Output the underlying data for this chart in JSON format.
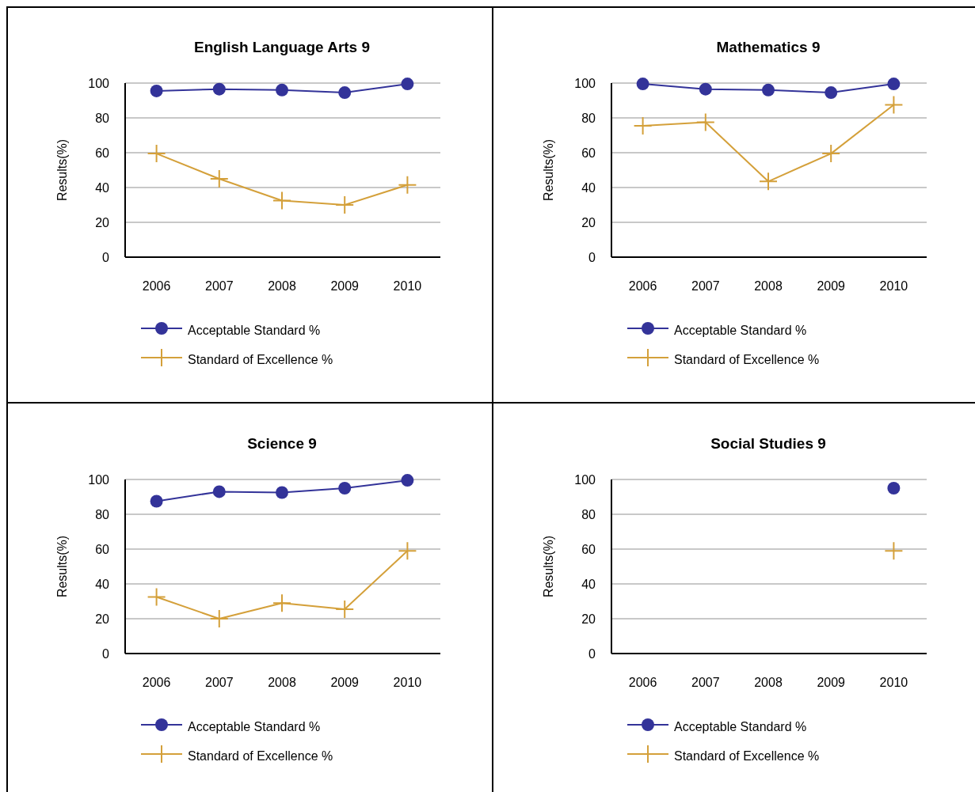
{
  "chart_data": [
    {
      "type": "line",
      "title": "English Language Arts 9",
      "ylabel": "Results(%)",
      "categories": [
        "2006",
        "2007",
        "2008",
        "2009",
        "2010"
      ],
      "ylim": [
        0,
        100
      ],
      "yticks": [
        0,
        20,
        40,
        60,
        80,
        100
      ],
      "grid": "y",
      "legend": "bottom",
      "series": [
        {
          "name": "Acceptable Standard %",
          "color": "#333399",
          "marker": "circle",
          "values": [
            95.5,
            96.5,
            96,
            94.5,
            99.5
          ]
        },
        {
          "name": "Standard of Excellence %",
          "color": "#d4a03a",
          "marker": "cross",
          "values": [
            59.5,
            45,
            32.5,
            30,
            41.5
          ]
        }
      ]
    },
    {
      "type": "line",
      "title": "Mathematics 9",
      "ylabel": "Results(%)",
      "categories": [
        "2006",
        "2007",
        "2008",
        "2009",
        "2010"
      ],
      "ylim": [
        0,
        100
      ],
      "yticks": [
        0,
        20,
        40,
        60,
        80,
        100
      ],
      "grid": "y",
      "legend": "bottom",
      "series": [
        {
          "name": "Acceptable Standard %",
          "color": "#333399",
          "marker": "circle",
          "values": [
            99.5,
            96.5,
            96,
            94.5,
            99.5
          ]
        },
        {
          "name": "Standard of Excellence %",
          "color": "#d4a03a",
          "marker": "cross",
          "values": [
            75.5,
            77.5,
            43.5,
            59.5,
            87.5
          ]
        }
      ]
    },
    {
      "type": "line",
      "title": "Science 9",
      "ylabel": "Results(%)",
      "categories": [
        "2006",
        "2007",
        "2008",
        "2009",
        "2010"
      ],
      "ylim": [
        0,
        100
      ],
      "yticks": [
        0,
        20,
        40,
        60,
        80,
        100
      ],
      "grid": "y",
      "legend": "bottom",
      "series": [
        {
          "name": "Acceptable Standard %",
          "color": "#333399",
          "marker": "circle",
          "values": [
            87.5,
            93,
            92.5,
            95,
            99.5
          ]
        },
        {
          "name": "Standard of Excellence %",
          "color": "#d4a03a",
          "marker": "cross",
          "values": [
            32.5,
            20,
            29,
            25.5,
            59
          ]
        }
      ]
    },
    {
      "type": "line",
      "title": "Social Studies 9",
      "ylabel": "Results(%)",
      "categories": [
        "2006",
        "2007",
        "2008",
        "2009",
        "2010"
      ],
      "ylim": [
        0,
        100
      ],
      "yticks": [
        0,
        20,
        40,
        60,
        80,
        100
      ],
      "grid": "y",
      "legend": "bottom",
      "series": [
        {
          "name": "Acceptable Standard %",
          "color": "#333399",
          "marker": "circle",
          "values": [
            null,
            null,
            null,
            null,
            95
          ]
        },
        {
          "name": "Standard of Excellence %",
          "color": "#d4a03a",
          "marker": "cross",
          "values": [
            null,
            null,
            null,
            null,
            59
          ]
        }
      ]
    }
  ]
}
